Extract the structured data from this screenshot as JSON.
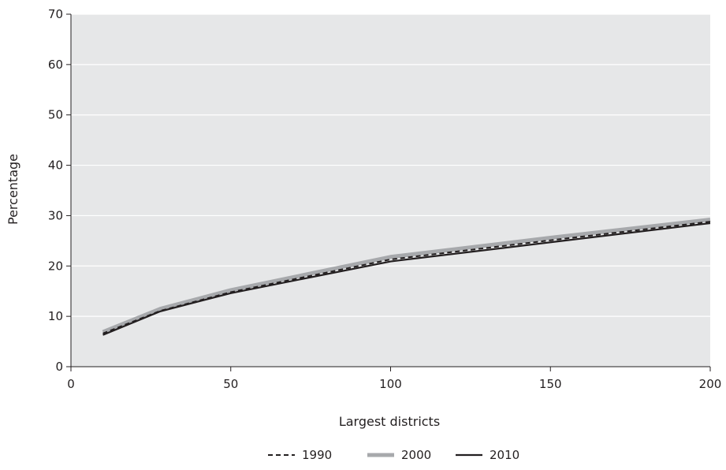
{
  "chart_data": {
    "type": "line",
    "title": "",
    "xlabel": "Largest districts",
    "ylabel": "Percentage",
    "xlim": [
      0,
      200
    ],
    "ylim": [
      0,
      70
    ],
    "x_ticks": [
      "0",
      "50",
      "100",
      "150",
      "200"
    ],
    "y_ticks": [
      "0",
      "10",
      "20",
      "30",
      "40",
      "50",
      "60",
      "70"
    ],
    "grid": true,
    "legend_position": "bottom",
    "x": [
      10,
      28,
      50,
      100,
      150,
      200
    ],
    "series": [
      {
        "name": "1990",
        "values": [
          6.6,
          11.1,
          14.8,
          21.3,
          25.1,
          28.8
        ],
        "color": "#231f20",
        "style": "dashed"
      },
      {
        "name": "2000",
        "values": [
          6.9,
          11.5,
          15.2,
          21.8,
          25.6,
          29.2
        ],
        "color": "#a7a9ac",
        "style": "solid-thick"
      },
      {
        "name": "2010",
        "values": [
          6.3,
          11.0,
          14.6,
          20.9,
          24.7,
          28.5
        ],
        "color": "#231f20",
        "style": "solid"
      }
    ],
    "plot_background": "#e6e7e8",
    "gridline_color": "#ffffff"
  }
}
